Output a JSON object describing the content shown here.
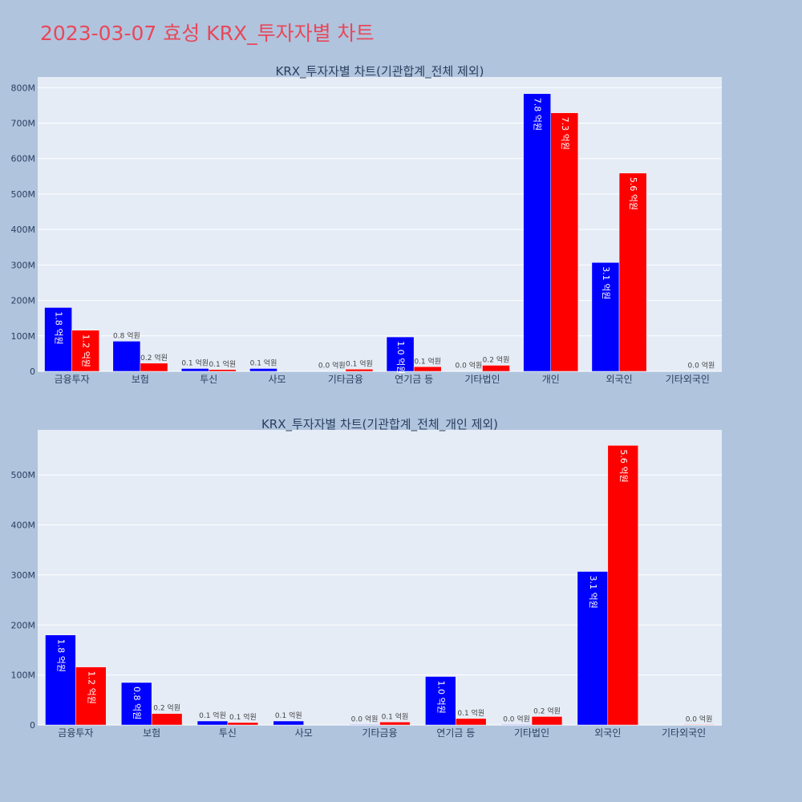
{
  "page": {
    "title": "2023-03-07 효성 KRX_투자자별 차트",
    "colors": {
      "background": "#b0c4de",
      "plot_bg": "#e5ecf6",
      "title": "#e8485a",
      "text": "#2a3f5f"
    }
  },
  "chart_data": [
    {
      "type": "bar",
      "title": "KRX_투자자별 차트(기관합계_전체 제외)",
      "categories": [
        "금융투자",
        "보험",
        "투신",
        "사모",
        "기타금융",
        "연기금 등",
        "기타법인",
        "개인",
        "외국인",
        "기타외국인"
      ],
      "series": [
        {
          "color": "#0000ff",
          "values": [
            180,
            85,
            8,
            8,
            1,
            97,
            1,
            783,
            307,
            0
          ],
          "labels": [
            "1.8 억원",
            "0.8 억원",
            "0.1 억원",
            "0.1 억원",
            "0.0 억원",
            "1.0 억원",
            "0.0 억원",
            "7.8 억원",
            "3.1 억원",
            ""
          ]
        },
        {
          "color": "#ff0000",
          "values": [
            116,
            23,
            5,
            0,
            6,
            13,
            17,
            729,
            559,
            1
          ],
          "labels": [
            "1.2 억원",
            "0.2 억원",
            "0.1 억원",
            "",
            "0.1 억원",
            "0.1 억원",
            "0.2 억원",
            "7.3 억원",
            "5.6 억원",
            "0.0 억원"
          ]
        }
      ],
      "ylim": [
        0,
        830
      ],
      "yticks": [
        0,
        100,
        200,
        300,
        400,
        500,
        600,
        700,
        800
      ],
      "ytick_labels": [
        "0",
        "100M",
        "200M",
        "300M",
        "400M",
        "500M",
        "600M",
        "700M",
        "800M"
      ],
      "grid": true
    },
    {
      "type": "bar",
      "title": "KRX_투자자별 차트(기관합계_전체_개인 제외)",
      "categories": [
        "금융투자",
        "보험",
        "투신",
        "사모",
        "기타금융",
        "연기금 등",
        "기타법인",
        "외국인",
        "기타외국인"
      ],
      "series": [
        {
          "color": "#0000ff",
          "values": [
            180,
            85,
            8,
            8,
            1,
            97,
            1,
            307,
            0
          ],
          "labels": [
            "1.8 억원",
            "0.8 억원",
            "0.1 억원",
            "0.1 억원",
            "0.0 억원",
            "1.0 억원",
            "0.0 억원",
            "3.1 억원",
            ""
          ]
        },
        {
          "color": "#ff0000",
          "values": [
            116,
            23,
            5,
            0,
            6,
            13,
            17,
            559,
            1
          ],
          "labels": [
            "1.2 억원",
            "0.2 억원",
            "0.1 억원",
            "",
            "0.1 억원",
            "0.1 억원",
            "0.2 억원",
            "5.6 억원",
            "0.0 억원"
          ]
        }
      ],
      "ylim": [
        0,
        590
      ],
      "yticks": [
        0,
        100,
        200,
        300,
        400,
        500
      ],
      "ytick_labels": [
        "0",
        "100M",
        "200M",
        "300M",
        "400M",
        "500M"
      ],
      "grid": true
    }
  ]
}
